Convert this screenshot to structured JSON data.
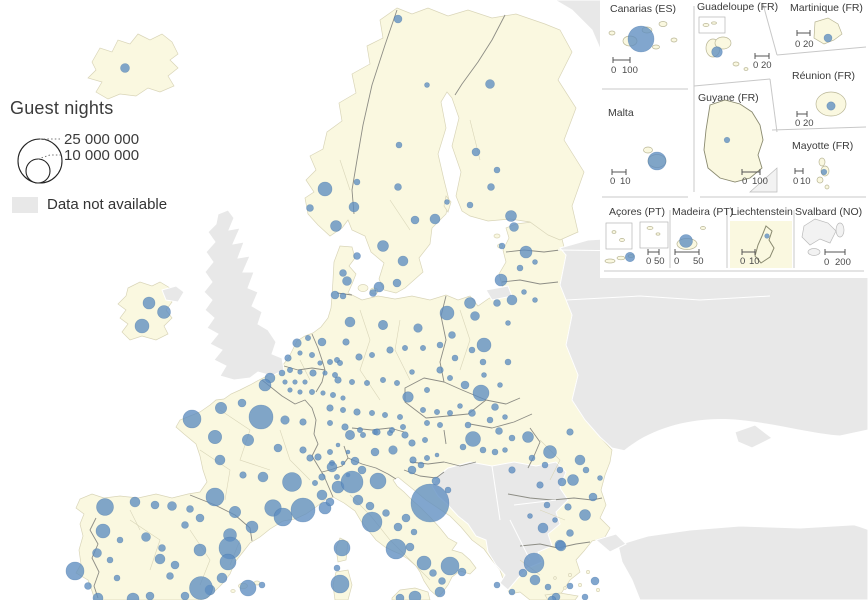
{
  "legend": {
    "title": "Guest nights",
    "size_labels": [
      "25 000 000",
      "10 000 000"
    ],
    "no_data_label": "Data not available"
  },
  "colors": {
    "sea": "#ffffff",
    "land_eu": "#faf8e0",
    "land_nodata": "#e8e8e8",
    "region_border": "#d9d5b8",
    "country_border": "#8d8d85",
    "circle_fill": "#5e8dc0",
    "circle_stroke": "#3f6fa3"
  },
  "insets": {
    "items": [
      {
        "title": "Canarias (ES)",
        "scale": [
          "0",
          "100"
        ]
      },
      {
        "title": "Guadeloupe (FR)",
        "scale": [
          "0",
          "20"
        ]
      },
      {
        "title": "Martinique (FR)",
        "scale": [
          "0",
          "20"
        ]
      },
      {
        "title": "Malta",
        "scale": [
          "0",
          "10"
        ]
      },
      {
        "title": "Guyane (FR)",
        "scale": [
          "0",
          "100"
        ]
      },
      {
        "title": "Réunion (FR)",
        "scale": [
          "0",
          "20"
        ]
      },
      {
        "title": "Mayotte (FR)",
        "scale": [
          "0",
          "10"
        ]
      },
      {
        "title": "Açores (PT)",
        "scale": [
          "0",
          "50"
        ]
      },
      {
        "title": "Madeira (PT)",
        "scale": [
          "0",
          "50"
        ]
      },
      {
        "title": "Liechtenstein",
        "scale": [
          "0",
          "10"
        ]
      },
      {
        "title": "Svalbard (NO)",
        "scale": [
          "0",
          "200"
        ]
      }
    ],
    "circles": [
      [
        41,
        39,
        13
      ],
      [
        57,
        161,
        9
      ],
      [
        117,
        52,
        5.3
      ],
      [
        127,
        140,
        2.8
      ],
      [
        228,
        38,
        4
      ],
      [
        231,
        106,
        4.2
      ],
      [
        224,
        172,
        2.8
      ],
      [
        30,
        257,
        4.7
      ],
      [
        86,
        241,
        6.5
      ],
      [
        167,
        236,
        2.3
      ]
    ]
  },
  "map": {
    "circles": [
      [
        125,
        68,
        4.5
      ],
      [
        149,
        303,
        6
      ],
      [
        164,
        312,
        6.5
      ],
      [
        142,
        326,
        7
      ],
      [
        398,
        19,
        4
      ],
      [
        357,
        182,
        3
      ],
      [
        325,
        189,
        7
      ],
      [
        310,
        208,
        3.5
      ],
      [
        354,
        207,
        5
      ],
      [
        336,
        226,
        5.5
      ],
      [
        427,
        85,
        2.5
      ],
      [
        399,
        145,
        3
      ],
      [
        398,
        187,
        3.5
      ],
      [
        415,
        220,
        4
      ],
      [
        435,
        219,
        5
      ],
      [
        383,
        246,
        5.5
      ],
      [
        403,
        261,
        5
      ],
      [
        397,
        283,
        4
      ],
      [
        447,
        202,
        2.5
      ],
      [
        490,
        84,
        4.5
      ],
      [
        476,
        152,
        4
      ],
      [
        497,
        170,
        3
      ],
      [
        491,
        187,
        3.5
      ],
      [
        511,
        216,
        5.5
      ],
      [
        470,
        205,
        3
      ],
      [
        357,
        256,
        3.5
      ],
      [
        343,
        273,
        3.5
      ],
      [
        347,
        281,
        4.5
      ],
      [
        343,
        296,
        3
      ],
      [
        373,
        293,
        3.5
      ],
      [
        379,
        287,
        5
      ],
      [
        514,
        227,
        4.5
      ],
      [
        526,
        252,
        6
      ],
      [
        502,
        246,
        3
      ],
      [
        501,
        280,
        6
      ],
      [
        520,
        268,
        3
      ],
      [
        535,
        262,
        2.5
      ],
      [
        512,
        300,
        5
      ],
      [
        497,
        303,
        3.5
      ],
      [
        524,
        292,
        2.5
      ],
      [
        535,
        300,
        2.5
      ],
      [
        447,
        313,
        7
      ],
      [
        470,
        303,
        5.5
      ],
      [
        484,
        345,
        7
      ],
      [
        481,
        393,
        8
      ],
      [
        465,
        385,
        4
      ],
      [
        452,
        335,
        3.5
      ],
      [
        440,
        345,
        3
      ],
      [
        455,
        358,
        3
      ],
      [
        472,
        350,
        3
      ],
      [
        483,
        362,
        3
      ],
      [
        508,
        362,
        3
      ],
      [
        484,
        375,
        2.5
      ],
      [
        495,
        407,
        3.5
      ],
      [
        500,
        385,
        2.5
      ],
      [
        508,
        323,
        2.5
      ],
      [
        475,
        316,
        4.5
      ],
      [
        335,
        295,
        4
      ],
      [
        350,
        322,
        5
      ],
      [
        383,
        325,
        4.7
      ],
      [
        418,
        328,
        4.3
      ],
      [
        346,
        342,
        3.3
      ],
      [
        359,
        357,
        3.3
      ],
      [
        372,
        355,
        2.7
      ],
      [
        390,
        350,
        3.3
      ],
      [
        405,
        348,
        2.7
      ],
      [
        423,
        348,
        2.7
      ],
      [
        440,
        370,
        3.3
      ],
      [
        450,
        378,
        2.7
      ],
      [
        338,
        380,
        3.3
      ],
      [
        352,
        382,
        2.7
      ],
      [
        367,
        383,
        2.7
      ],
      [
        383,
        380,
        2.7
      ],
      [
        397,
        383,
        2.7
      ],
      [
        412,
        372,
        2.5
      ],
      [
        427,
        390,
        2.7
      ],
      [
        330,
        408,
        3.3
      ],
      [
        343,
        410,
        2.7
      ],
      [
        357,
        412,
        3.3
      ],
      [
        372,
        413,
        2.7
      ],
      [
        385,
        415,
        2.7
      ],
      [
        400,
        417,
        2.7
      ],
      [
        330,
        423,
        2.7
      ],
      [
        345,
        427,
        3.3
      ],
      [
        360,
        430,
        2.7
      ],
      [
        375,
        432,
        2.7
      ],
      [
        350,
        435,
        4.7
      ],
      [
        390,
        433,
        2.7
      ],
      [
        405,
        435,
        3.3
      ],
      [
        337,
        360,
        2.7
      ],
      [
        297,
        343,
        4.3
      ],
      [
        322,
        342,
        4
      ],
      [
        308,
        338,
        2.7
      ],
      [
        288,
        358,
        3.3
      ],
      [
        300,
        353,
        2.3
      ],
      [
        312,
        355,
        2.7
      ],
      [
        320,
        363,
        2.3
      ],
      [
        330,
        362,
        2.7
      ],
      [
        340,
        363,
        2.7
      ],
      [
        290,
        370,
        2.7
      ],
      [
        282,
        373,
        3
      ],
      [
        300,
        372,
        2.3
      ],
      [
        313,
        373,
        3.3
      ],
      [
        325,
        373,
        2.3
      ],
      [
        335,
        375,
        2.7
      ],
      [
        270,
        378,
        5
      ],
      [
        265,
        385,
        6
      ],
      [
        285,
        382,
        2.3
      ],
      [
        295,
        382,
        2.3
      ],
      [
        305,
        382,
        2.3
      ],
      [
        290,
        390,
        2.3
      ],
      [
        300,
        392,
        2.3
      ],
      [
        312,
        392,
        2.7
      ],
      [
        323,
        393,
        2.3
      ],
      [
        333,
        395,
        2.7
      ],
      [
        343,
        398,
        2.3
      ],
      [
        408,
        397,
        5.3
      ],
      [
        423,
        410,
        2.7
      ],
      [
        437,
        412,
        2.7
      ],
      [
        450,
        413,
        2.7
      ],
      [
        427,
        423,
        2.7
      ],
      [
        440,
        425,
        2.7
      ],
      [
        460,
        406,
        2.5
      ],
      [
        472,
        413,
        3.5
      ],
      [
        468,
        425,
        3
      ],
      [
        490,
        420,
        3
      ],
      [
        505,
        417,
        2.5
      ],
      [
        363,
        435,
        2.7
      ],
      [
        377,
        432,
        3.3
      ],
      [
        392,
        430,
        2.7
      ],
      [
        403,
        427,
        2.7
      ],
      [
        375,
        452,
        4
      ],
      [
        393,
        450,
        4.3
      ],
      [
        412,
        443,
        3.3
      ],
      [
        425,
        440,
        2.7
      ],
      [
        413,
        460,
        3.3
      ],
      [
        427,
        458,
        2.7
      ],
      [
        437,
        455,
        2
      ],
      [
        318,
        457,
        3.3
      ],
      [
        330,
        452,
        2.7
      ],
      [
        338,
        445,
        2
      ],
      [
        348,
        452,
        2
      ],
      [
        332,
        463,
        2.7
      ],
      [
        343,
        463,
        2
      ],
      [
        322,
        477,
        3.3
      ],
      [
        315,
        483,
        2.7
      ],
      [
        337,
        477,
        2.7
      ],
      [
        348,
        475,
        2
      ],
      [
        310,
        458,
        3.3
      ],
      [
        355,
        461,
        4
      ],
      [
        192,
        419,
        9
      ],
      [
        221,
        408,
        5.7
      ],
      [
        242,
        403,
        4
      ],
      [
        261,
        417,
        12
      ],
      [
        248,
        440,
        5.7
      ],
      [
        215,
        437,
        6.7
      ],
      [
        220,
        460,
        5
      ],
      [
        285,
        420,
        4.3
      ],
      [
        303,
        422,
        3.3
      ],
      [
        278,
        448,
        4
      ],
      [
        303,
        450,
        3.3
      ],
      [
        243,
        475,
        3.3
      ],
      [
        263,
        477,
        5
      ],
      [
        292,
        482,
        9.5
      ],
      [
        215,
        497,
        9
      ],
      [
        235,
        512,
        5.7
      ],
      [
        273,
        508,
        8.3
      ],
      [
        303,
        510,
        12
      ],
      [
        325,
        508,
        6
      ],
      [
        252,
        527,
        6
      ],
      [
        283,
        517,
        9
      ],
      [
        342,
        548,
        8
      ],
      [
        105,
        507,
        8.5
      ],
      [
        135,
        502,
        5
      ],
      [
        155,
        505,
        4
      ],
      [
        172,
        506,
        4.5
      ],
      [
        190,
        509,
        3.5
      ],
      [
        200,
        518,
        4
      ],
      [
        185,
        525,
        3.5
      ],
      [
        146,
        537,
        4.5
      ],
      [
        162,
        548,
        3.5
      ],
      [
        230,
        535,
        6.5
      ],
      [
        230,
        548,
        11
      ],
      [
        200,
        550,
        6
      ],
      [
        228,
        562,
        8
      ],
      [
        222,
        578,
        5
      ],
      [
        210,
        590,
        5
      ],
      [
        201,
        588,
        11.5
      ],
      [
        175,
        565,
        4
      ],
      [
        160,
        559,
        5
      ],
      [
        170,
        576,
        3.5
      ],
      [
        185,
        596,
        4
      ],
      [
        133,
        599,
        6
      ],
      [
        150,
        596,
        4
      ],
      [
        248,
        588,
        8
      ],
      [
        262,
        585,
        3
      ],
      [
        103,
        531,
        7
      ],
      [
        97,
        553,
        4.5
      ],
      [
        75,
        571,
        9
      ],
      [
        88,
        586,
        3.5
      ],
      [
        117,
        578,
        3
      ],
      [
        98,
        598,
        5
      ],
      [
        110,
        560,
        3
      ],
      [
        120,
        540,
        3
      ],
      [
        322,
        495,
        5
      ],
      [
        338,
        487,
        6
      ],
      [
        352,
        482,
        11
      ],
      [
        378,
        481,
        8
      ],
      [
        332,
        467,
        5
      ],
      [
        362,
        470,
        4
      ],
      [
        358,
        500,
        5
      ],
      [
        370,
        506,
        4
      ],
      [
        330,
        502,
        4
      ],
      [
        372,
        522,
        10
      ],
      [
        386,
        513,
        3.5
      ],
      [
        398,
        527,
        4
      ],
      [
        406,
        518,
        4
      ],
      [
        414,
        532,
        3
      ],
      [
        396,
        549,
        10
      ],
      [
        410,
        547,
        4
      ],
      [
        424,
        563,
        7
      ],
      [
        433,
        573,
        3.5
      ],
      [
        450,
        566,
        9
      ],
      [
        462,
        572,
        4
      ],
      [
        442,
        581,
        3.5
      ],
      [
        440,
        592,
        5
      ],
      [
        415,
        597,
        6
      ],
      [
        400,
        598,
        4
      ],
      [
        340,
        584,
        9
      ],
      [
        337,
        568,
        3
      ],
      [
        412,
        470,
        4
      ],
      [
        421,
        465,
        3
      ],
      [
        430,
        503,
        19
      ],
      [
        436,
        481,
        4
      ],
      [
        448,
        490,
        3
      ],
      [
        473,
        439,
        7.5
      ],
      [
        483,
        450,
        3
      ],
      [
        499,
        431,
        3.5
      ],
      [
        512,
        438,
        3
      ],
      [
        495,
        452,
        3
      ],
      [
        463,
        447,
        3
      ],
      [
        505,
        450,
        2.5
      ],
      [
        528,
        437,
        5.5
      ],
      [
        550,
        452,
        6.5
      ],
      [
        580,
        460,
        5
      ],
      [
        570,
        432,
        3.3
      ],
      [
        593,
        497,
        4
      ],
      [
        573,
        480,
        5.5
      ],
      [
        562,
        482,
        4
      ],
      [
        540,
        485,
        3.3
      ],
      [
        512,
        470,
        3.3
      ],
      [
        545,
        465,
        3
      ],
      [
        560,
        470,
        3
      ],
      [
        586,
        470,
        3
      ],
      [
        600,
        478,
        2.5
      ],
      [
        532,
        458,
        3
      ],
      [
        543,
        528,
        5
      ],
      [
        585,
        515,
        5.5
      ],
      [
        570,
        533,
        3.5
      ],
      [
        560,
        545,
        5
      ],
      [
        568,
        507,
        3.3
      ],
      [
        547,
        505,
        3
      ],
      [
        530,
        516,
        2.5
      ],
      [
        555,
        520,
        2.5
      ],
      [
        534,
        563,
        10
      ],
      [
        523,
        573,
        4
      ],
      [
        535,
        580,
        5
      ],
      [
        556,
        597,
        4
      ],
      [
        561,
        546,
        5
      ],
      [
        548,
        587,
        3
      ],
      [
        595,
        581,
        4
      ],
      [
        497,
        585,
        3
      ],
      [
        512,
        592,
        3
      ],
      [
        570,
        586,
        3
      ],
      [
        585,
        597,
        3
      ],
      [
        552,
        600,
        4
      ]
    ]
  }
}
